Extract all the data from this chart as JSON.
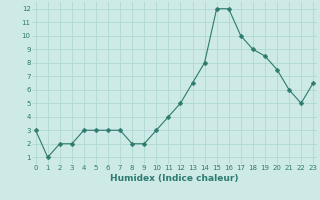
{
  "x": [
    0,
    1,
    2,
    3,
    4,
    5,
    6,
    7,
    8,
    9,
    10,
    11,
    12,
    13,
    14,
    15,
    16,
    17,
    18,
    19,
    20,
    21,
    22,
    23
  ],
  "y": [
    3,
    1,
    2,
    2,
    3,
    3,
    3,
    3,
    2,
    2,
    3,
    4,
    5,
    6.5,
    8,
    12,
    12,
    10,
    9,
    8.5,
    7.5,
    6,
    5,
    6.5
  ],
  "xlabel": "Humidex (Indice chaleur)",
  "xlim": [
    -0.3,
    23.3
  ],
  "ylim": [
    0.5,
    12.5
  ],
  "yticks": [
    1,
    2,
    3,
    4,
    5,
    6,
    7,
    8,
    9,
    10,
    11,
    12
  ],
  "xticks": [
    0,
    1,
    2,
    3,
    4,
    5,
    6,
    7,
    8,
    9,
    10,
    11,
    12,
    13,
    14,
    15,
    16,
    17,
    18,
    19,
    20,
    21,
    22,
    23
  ],
  "line_color": "#2d7a6e",
  "marker": "P",
  "markersize": 2.5,
  "linewidth": 0.8,
  "bg_color": "#cdeae6",
  "grid_color": "#b0d8d3",
  "tick_color": "#2d7a6e",
  "xlabel_color": "#2d7a6e",
  "xlabel_fontsize": 6.5,
  "tick_fontsize": 5.0
}
